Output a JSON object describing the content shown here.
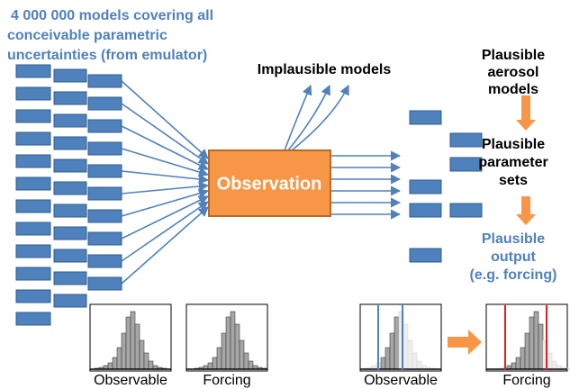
{
  "title": {
    "lines": [
      "4 000 000 models covering all",
      "conceivable parametric",
      "uncertainties (from emulator)"
    ]
  },
  "implausible": "Implausible models",
  "observation": "Observation",
  "right": {
    "aerosol": [
      "Plausible",
      "aerosol",
      "models"
    ],
    "parameters": [
      "Plausible",
      "parameter",
      "sets"
    ],
    "output": [
      "Plausible",
      "output",
      "(e.g. forcing)"
    ]
  },
  "histograms": [
    "Observable",
    "Forcing",
    "Observable",
    "Forcing"
  ]
}
